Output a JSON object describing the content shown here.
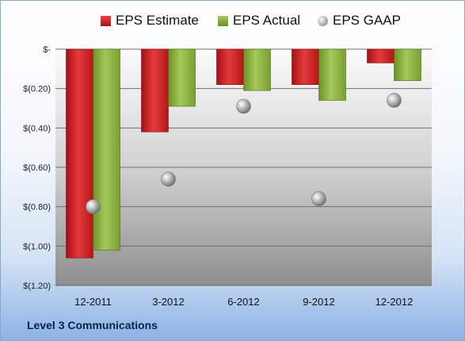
{
  "company": "Level 3 Communications",
  "colors": {
    "estimate": "#d81e22",
    "actual": "#8cb43c",
    "gaap": "#b8b8b8"
  },
  "chart_data": {
    "type": "bar",
    "title": "",
    "xlabel": "",
    "ylabel": "",
    "categories": [
      "12-2011",
      "3-2012",
      "6-2012",
      "9-2012",
      "12-2012"
    ],
    "series": [
      {
        "name": "EPS Estimate",
        "kind": "bar",
        "values": [
          -1.06,
          -0.42,
          -0.18,
          -0.18,
          -0.07
        ]
      },
      {
        "name": "EPS Actual",
        "kind": "bar",
        "values": [
          -1.02,
          -0.29,
          -0.21,
          -0.26,
          -0.16
        ]
      },
      {
        "name": "EPS GAAP",
        "kind": "point",
        "values": [
          -0.8,
          -0.66,
          -0.29,
          -0.76,
          -0.26
        ]
      }
    ],
    "ylim": [
      -1.2,
      0
    ],
    "yticks": [
      0,
      -0.2,
      -0.4,
      -0.6,
      -0.8,
      -1.0,
      -1.2
    ],
    "ytick_labels": [
      "$-",
      "$(0.20)",
      "$(0.40)",
      "$(0.60)",
      "$(0.80)",
      "$(1.00)",
      "$(1.20)"
    ],
    "grid": true,
    "legend_position": "top"
  }
}
